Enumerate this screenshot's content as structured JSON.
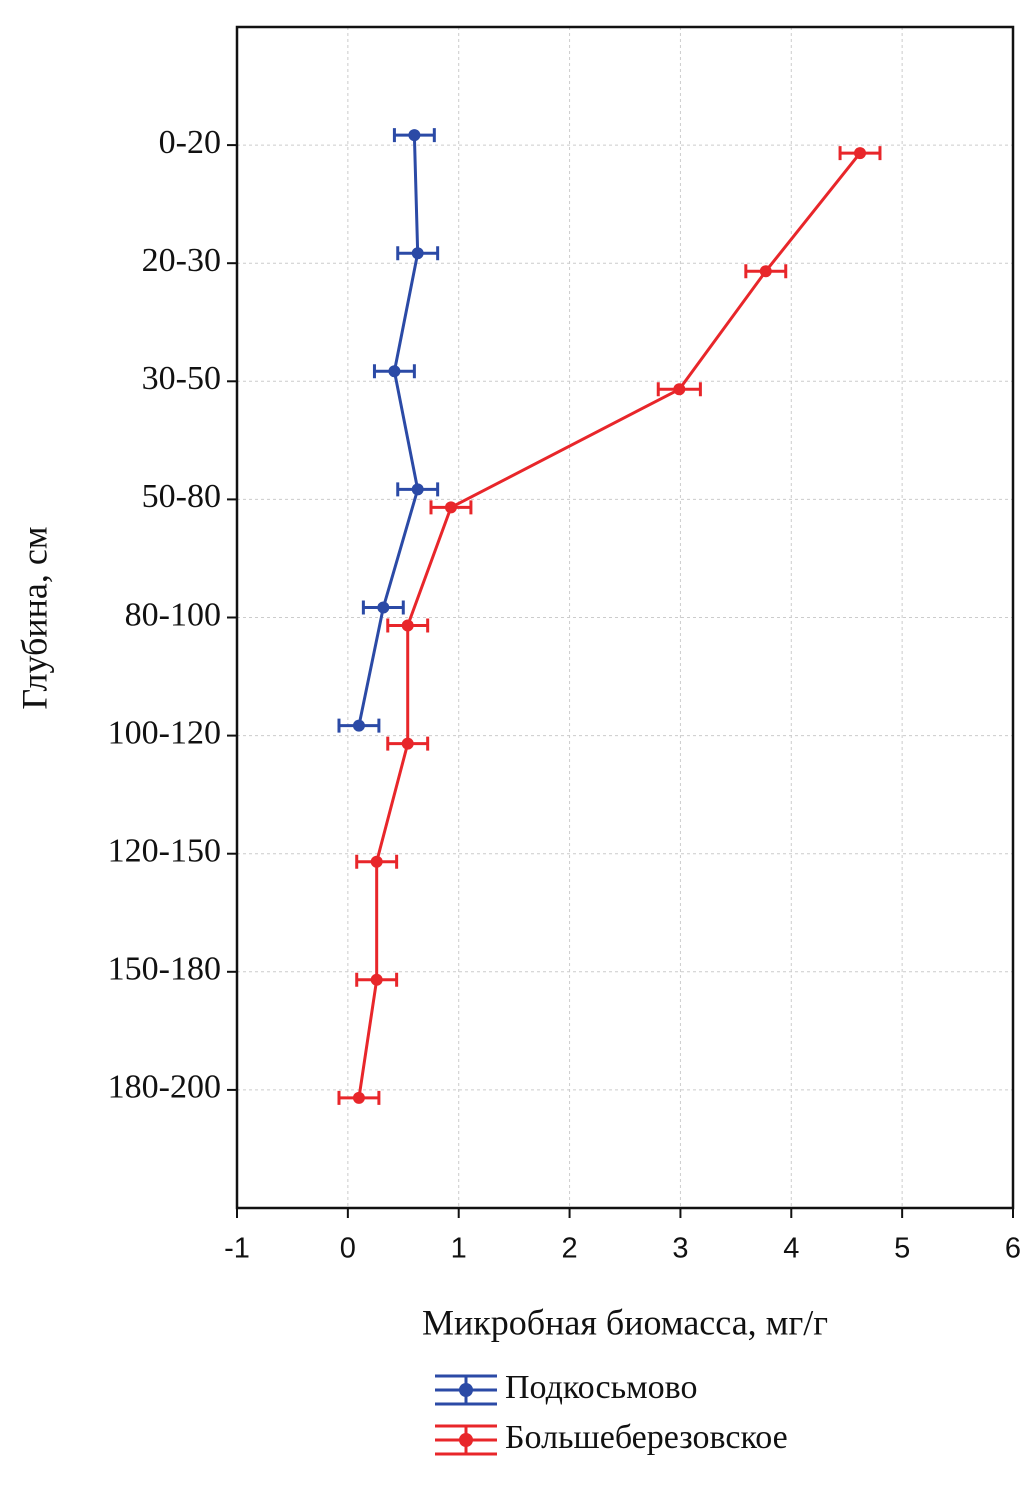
{
  "chart_data": {
    "type": "line",
    "orientation": "horizontal",
    "x_label": "Микробная биомасса, мг/г",
    "y_label": "Глубина, см",
    "categories": [
      "0-20",
      "20-30",
      "30-50",
      "50-80",
      "80-100",
      "100-120",
      "120-150",
      "150-180",
      "180-200"
    ],
    "series": [
      {
        "name": "Подкосьмово",
        "color": "#2b4aa6",
        "values": [
          0.6,
          0.63,
          0.42,
          0.63,
          0.32,
          0.1,
          null,
          null,
          null
        ],
        "errors": [
          0.18,
          0.18,
          0.18,
          0.18,
          0.18,
          0.18,
          null,
          null,
          null
        ]
      },
      {
        "name": "Большеберезовское",
        "color": "#e8262a",
        "values": [
          4.62,
          3.77,
          2.99,
          0.93,
          0.54,
          0.54,
          0.26,
          0.26,
          0.1
        ],
        "errors": [
          0.18,
          0.18,
          0.19,
          0.18,
          0.18,
          0.18,
          0.18,
          0.18,
          0.18
        ]
      }
    ],
    "xlim": [
      -1,
      6
    ],
    "xticks": [
      -1,
      0,
      1,
      2,
      3,
      4,
      5,
      6
    ],
    "grid": true,
    "legend": "bottom"
  }
}
